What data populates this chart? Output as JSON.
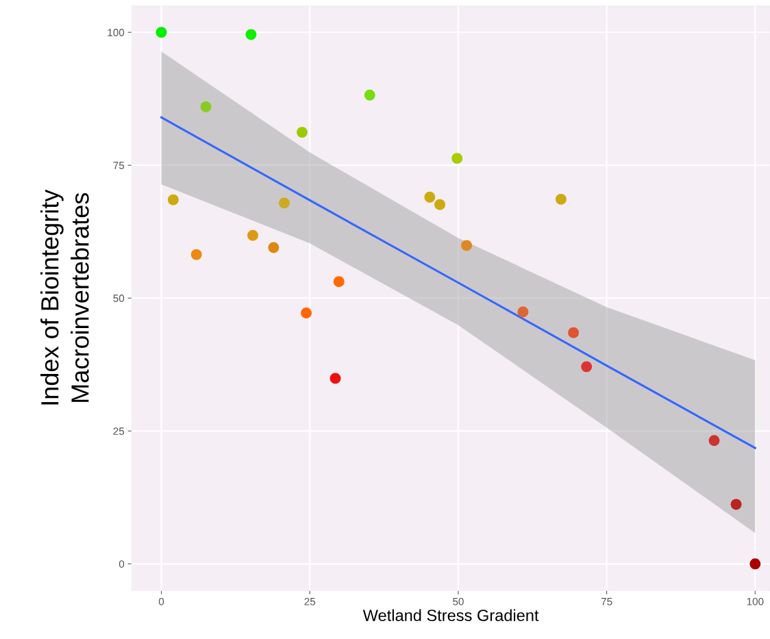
{
  "chart_data": {
    "type": "scatter",
    "xlabel": "Wetland Stress Gradient",
    "ylabel": "Index of Biointegrity\nMacroinvertebrates",
    "xlim": [
      -5,
      102.5
    ],
    "ylim": [
      -5,
      105
    ],
    "xticks": [
      0,
      25,
      50,
      75,
      100
    ],
    "yticks": [
      0,
      25,
      50,
      75,
      100
    ],
    "grid": true,
    "series": [
      {
        "marker": "circle",
        "x": [
          0,
          15.1,
          7.5,
          23.7,
          35.1,
          49.8,
          2.0,
          5.9,
          15.4,
          18.9,
          20.7,
          24.4,
          29.9,
          29.3,
          45.2,
          46.9,
          67.3,
          51.4,
          60.9,
          69.4,
          71.6,
          93.1,
          96.8,
          100
        ],
        "values": [
          100,
          99.6,
          86.0,
          81.2,
          88.2,
          76.3,
          68.5,
          58.2,
          61.8,
          59.5,
          67.9,
          47.2,
          53.1,
          34.9,
          69.0,
          67.6,
          68.6,
          59.9,
          47.4,
          43.5,
          37.1,
          23.2,
          11.2,
          0
        ],
        "colors": [
          "#00ee00",
          "#11ee00",
          "#88cc22",
          "#99cc00",
          "#77dd11",
          "#aacc00",
          "#ccaa11",
          "#ee8811",
          "#dd9911",
          "#dd8811",
          "#ccaa22",
          "#ff6600",
          "#ff6a00",
          "#ee1111",
          "#ccaa11",
          "#ccaa11",
          "#ccaa11",
          "#dd8822",
          "#dd6633",
          "#dd5533",
          "#dd3333",
          "#cc3333",
          "#bb2222",
          "#aa0000"
        ]
      },
      {
        "type": "line",
        "color": "#3366ff",
        "x": [
          0,
          25,
          50,
          75,
          100
        ],
        "values": [
          84.0,
          68.4,
          52.9,
          37.3,
          21.8
        ],
        "lower": [
          71.4,
          60.3,
          44.9,
          25.6,
          5.8
        ],
        "upper": [
          96.4,
          77.4,
          61.3,
          48.3,
          38.3
        ],
        "line_style": "solid"
      }
    ]
  }
}
